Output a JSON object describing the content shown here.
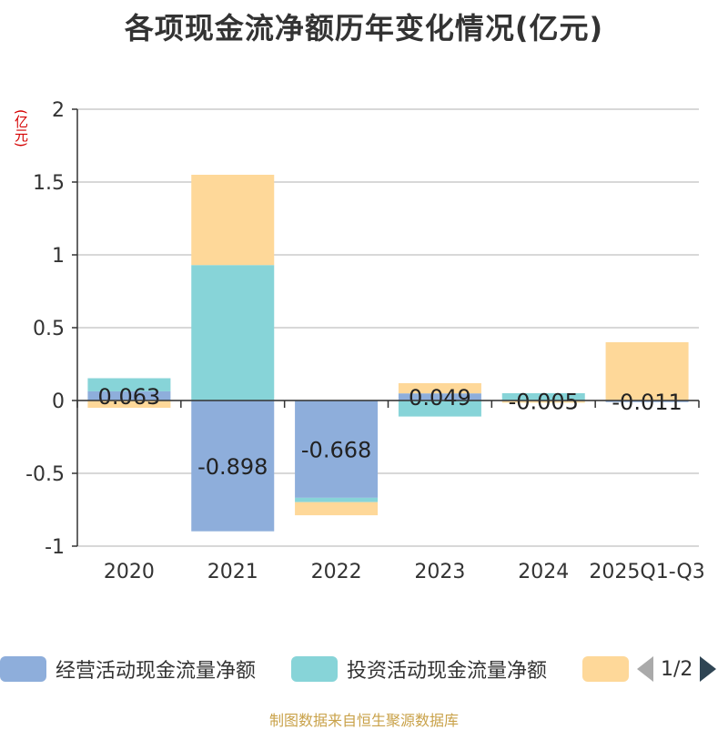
{
  "title": "各项现金流净额历年变化情况(亿元)",
  "unit_label": "(亿元)",
  "footer": "制图数据来自恒生聚源数据库",
  "legend": {
    "items": [
      {
        "label": "经营活动现金流量净额",
        "color": "#8eaedb"
      },
      {
        "label": "投资活动现金流量净额",
        "color": "#87d4d8"
      },
      {
        "label": "",
        "color": "#fed899"
      }
    ],
    "page": "1/2"
  },
  "chart_data": {
    "type": "bar",
    "stacked": true,
    "categories": [
      "2020",
      "2021",
      "2022",
      "2023",
      "2024",
      "2025Q1-Q3"
    ],
    "ylim": [
      -1,
      2
    ],
    "yticks": [
      -1,
      -0.5,
      0,
      0.5,
      1,
      1.5,
      2
    ],
    "ytick_labels": [
      "-1",
      "-0.5",
      "0",
      "0.5",
      "1",
      "1.5",
      "2"
    ],
    "grid": true,
    "legend_position": "bottom",
    "series": [
      {
        "name": "经营活动现金流量净额",
        "color": "#8eaedb",
        "values": [
          0.063,
          -0.898,
          -0.668,
          0.049,
          -0.005,
          -0.011
        ],
        "labels": [
          "0.063",
          "-0.898",
          "-0.668",
          "0.049",
          "-0.005",
          "-0.011"
        ]
      },
      {
        "name": "投资活动现金流量净额",
        "color": "#87d4d8",
        "values": [
          0.09,
          0.93,
          -0.03,
          -0.11,
          0.05,
          0.0
        ]
      },
      {
        "name": "",
        "color": "#fed899",
        "values": [
          -0.05,
          0.62,
          -0.09,
          0.07,
          -0.01,
          0.4
        ]
      }
    ]
  }
}
